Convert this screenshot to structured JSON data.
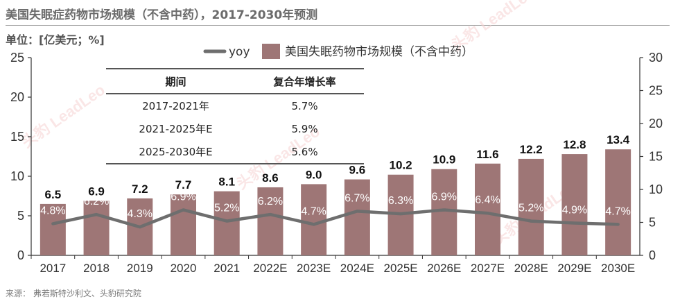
{
  "title": "美国失眠症药物市场规模（不含中药），2017-2030年预测",
  "unit_label": "单位：[亿美元；%]",
  "source": "来源：  弗若斯特沙利文、头豹研究院",
  "watermark": "头豹 LeadLeo",
  "cagr_table": {
    "headers": [
      "期间",
      "复合年增长率"
    ],
    "rows": [
      {
        "period": "2017-2021年",
        "rate": "5.7%"
      },
      {
        "period": "2021-2025年E",
        "rate": "5.9%"
      },
      {
        "period": "2025-2030年E",
        "rate": "5.6%"
      }
    ]
  },
  "chart_data": {
    "type": "bar",
    "categories": [
      "2017",
      "2018",
      "2019",
      "2020",
      "2021",
      "2022E",
      "2023E",
      "2024E",
      "2025E",
      "2026E",
      "2027E",
      "2028E",
      "2029E",
      "2030E"
    ],
    "series": [
      {
        "name": "美国失眠药物市场规模（不含中药）",
        "type": "bar",
        "axis": "left",
        "values": [
          6.5,
          6.9,
          7.2,
          7.7,
          8.1,
          8.6,
          9.0,
          9.6,
          10.2,
          10.9,
          11.6,
          12.2,
          12.8,
          13.4
        ],
        "labels": [
          "6.5",
          "6.9",
          "7.2",
          "7.7",
          "8.1",
          "8.6",
          "9.0",
          "9.6",
          "10.2",
          "10.9",
          "11.6",
          "12.2",
          "12.8",
          "13.4"
        ],
        "color": "#9e7676"
      },
      {
        "name": "yoy",
        "type": "line",
        "axis": "right",
        "values": [
          4.8,
          6.2,
          4.3,
          6.9,
          5.2,
          6.2,
          4.7,
          6.7,
          6.3,
          6.9,
          6.4,
          5.2,
          4.9,
          4.7
        ],
        "labels": [
          "4.8%",
          "6.2%",
          "4.3%",
          "6.9%",
          "5.2%",
          "6.2%",
          "4.7%",
          "6.7%",
          "6.3%",
          "6.9%",
          "6.4%",
          "5.2%",
          "4.9%",
          "4.7%"
        ],
        "color": "#6e6e6e"
      }
    ],
    "y_left": {
      "lim": [
        0,
        25
      ],
      "ticks": [
        "0",
        "5",
        "10",
        "15",
        "20",
        "25"
      ]
    },
    "y_right": {
      "lim": [
        0,
        30
      ],
      "ticks": [
        "0",
        "5",
        "10",
        "15",
        "20",
        "25",
        "30"
      ]
    },
    "legend_position": "top-right",
    "grid": false
  }
}
